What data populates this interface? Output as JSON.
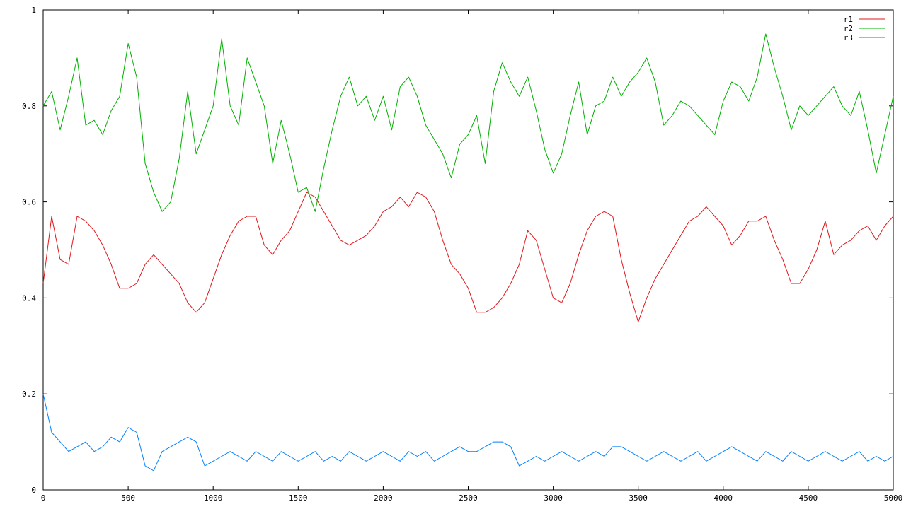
{
  "chart_data": {
    "type": "line",
    "title": "",
    "xlabel": "",
    "ylabel": "",
    "xlim": [
      0,
      5000
    ],
    "ylim": [
      0,
      1
    ],
    "xticks": [
      0,
      500,
      1000,
      1500,
      2000,
      2500,
      3000,
      3500,
      4000,
      4500,
      5000
    ],
    "yticks": [
      0,
      0.2,
      0.4,
      0.6,
      0.8,
      1
    ],
    "ytick_labels": [
      "0",
      "0.2",
      "0.4",
      "0.6",
      "0.8",
      "1"
    ],
    "grid": false,
    "legend_position": "top-right",
    "series": [
      {
        "name": "r1",
        "color": "#e0171b",
        "x": [
          0,
          50,
          100,
          150,
          200,
          250,
          300,
          350,
          400,
          450,
          500,
          550,
          600,
          650,
          700,
          750,
          800,
          850,
          900,
          950,
          1000,
          1050,
          1100,
          1150,
          1200,
          1250,
          1300,
          1350,
          1400,
          1450,
          1500,
          1550,
          1600,
          1650,
          1700,
          1750,
          1800,
          1850,
          1900,
          1950,
          2000,
          2050,
          2100,
          2150,
          2200,
          2250,
          2300,
          2350,
          2400,
          2450,
          2500,
          2550,
          2600,
          2650,
          2700,
          2750,
          2800,
          2850,
          2900,
          2950,
          3000,
          3050,
          3100,
          3150,
          3200,
          3250,
          3300,
          3350,
          3400,
          3450,
          3500,
          3550,
          3600,
          3650,
          3700,
          3750,
          3800,
          3850,
          3900,
          3950,
          4000,
          4050,
          4100,
          4150,
          4200,
          4250,
          4300,
          4350,
          4400,
          4450,
          4500,
          4550,
          4600,
          4650,
          4700,
          4750,
          4800,
          4850,
          4900,
          4950,
          5000
        ],
        "values": [
          0.43,
          0.57,
          0.48,
          0.47,
          0.57,
          0.56,
          0.54,
          0.51,
          0.47,
          0.42,
          0.42,
          0.43,
          0.47,
          0.49,
          0.47,
          0.45,
          0.43,
          0.39,
          0.37,
          0.39,
          0.44,
          0.49,
          0.53,
          0.56,
          0.57,
          0.57,
          0.51,
          0.49,
          0.52,
          0.54,
          0.58,
          0.62,
          0.61,
          0.58,
          0.55,
          0.52,
          0.51,
          0.52,
          0.53,
          0.55,
          0.58,
          0.59,
          0.61,
          0.59,
          0.62,
          0.61,
          0.58,
          0.52,
          0.47,
          0.45,
          0.42,
          0.37,
          0.37,
          0.38,
          0.4,
          0.43,
          0.47,
          0.54,
          0.52,
          0.46,
          0.4,
          0.39,
          0.43,
          0.49,
          0.54,
          0.57,
          0.58,
          0.57,
          0.48,
          0.41,
          0.35,
          0.4,
          0.44,
          0.47,
          0.5,
          0.53,
          0.56,
          0.57,
          0.59,
          0.57,
          0.55,
          0.51,
          0.53,
          0.56,
          0.56,
          0.57,
          0.52,
          0.48,
          0.43,
          0.43,
          0.46,
          0.5,
          0.56,
          0.49,
          0.51,
          0.52,
          0.54,
          0.55,
          0.52,
          0.55,
          0.57
        ]
      },
      {
        "name": "r2",
        "color": "#00b000",
        "x": [
          0,
          50,
          100,
          150,
          200,
          250,
          300,
          350,
          400,
          450,
          500,
          550,
          600,
          650,
          700,
          750,
          800,
          850,
          900,
          950,
          1000,
          1050,
          1100,
          1150,
          1200,
          1250,
          1300,
          1350,
          1400,
          1450,
          1500,
          1550,
          1600,
          1650,
          1700,
          1750,
          1800,
          1850,
          1900,
          1950,
          2000,
          2050,
          2100,
          2150,
          2200,
          2250,
          2300,
          2350,
          2400,
          2450,
          2500,
          2550,
          2600,
          2650,
          2700,
          2750,
          2800,
          2850,
          2900,
          2950,
          3000,
          3050,
          3100,
          3150,
          3200,
          3250,
          3300,
          3350,
          3400,
          3450,
          3500,
          3550,
          3600,
          3650,
          3700,
          3750,
          3800,
          3850,
          3900,
          3950,
          4000,
          4050,
          4100,
          4150,
          4200,
          4250,
          4300,
          4350,
          4400,
          4450,
          4500,
          4550,
          4600,
          4650,
          4700,
          4750,
          4800,
          4850,
          4900,
          4950,
          5000
        ],
        "values": [
          0.8,
          0.83,
          0.75,
          0.82,
          0.9,
          0.76,
          0.77,
          0.74,
          0.79,
          0.82,
          0.93,
          0.86,
          0.68,
          0.62,
          0.58,
          0.6,
          0.69,
          0.83,
          0.7,
          0.75,
          0.8,
          0.94,
          0.8,
          0.76,
          0.9,
          0.85,
          0.8,
          0.68,
          0.77,
          0.7,
          0.62,
          0.63,
          0.58,
          0.67,
          0.75,
          0.82,
          0.86,
          0.8,
          0.82,
          0.77,
          0.82,
          0.75,
          0.84,
          0.86,
          0.82,
          0.76,
          0.73,
          0.7,
          0.65,
          0.72,
          0.74,
          0.78,
          0.68,
          0.83,
          0.89,
          0.85,
          0.82,
          0.86,
          0.79,
          0.71,
          0.66,
          0.7,
          0.78,
          0.85,
          0.74,
          0.8,
          0.81,
          0.86,
          0.82,
          0.85,
          0.87,
          0.9,
          0.85,
          0.76,
          0.78,
          0.81,
          0.8,
          0.78,
          0.76,
          0.74,
          0.81,
          0.85,
          0.84,
          0.81,
          0.86,
          0.95,
          0.88,
          0.82,
          0.75,
          0.8,
          0.78,
          0.8,
          0.82,
          0.84,
          0.8,
          0.78,
          0.83,
          0.75,
          0.66,
          0.74,
          0.82
        ]
      },
      {
        "name": "r3",
        "color": "#0080ff",
        "x": [
          0,
          50,
          100,
          150,
          200,
          250,
          300,
          350,
          400,
          450,
          500,
          550,
          600,
          650,
          700,
          750,
          800,
          850,
          900,
          950,
          1000,
          1050,
          1100,
          1150,
          1200,
          1250,
          1300,
          1350,
          1400,
          1450,
          1500,
          1550,
          1600,
          1650,
          1700,
          1750,
          1800,
          1850,
          1900,
          1950,
          2000,
          2050,
          2100,
          2150,
          2200,
          2250,
          2300,
          2350,
          2400,
          2450,
          2500,
          2550,
          2600,
          2650,
          2700,
          2750,
          2800,
          2850,
          2900,
          2950,
          3000,
          3050,
          3100,
          3150,
          3200,
          3250,
          3300,
          3350,
          3400,
          3450,
          3500,
          3550,
          3600,
          3650,
          3700,
          3750,
          3800,
          3850,
          3900,
          3950,
          4000,
          4050,
          4100,
          4150,
          4200,
          4250,
          4300,
          4350,
          4400,
          4450,
          4500,
          4550,
          4600,
          4650,
          4700,
          4750,
          4800,
          4850,
          4900,
          4950,
          5000
        ],
        "values": [
          0.2,
          0.12,
          0.1,
          0.08,
          0.09,
          0.1,
          0.08,
          0.09,
          0.11,
          0.1,
          0.13,
          0.12,
          0.05,
          0.04,
          0.08,
          0.09,
          0.1,
          0.11,
          0.1,
          0.05,
          0.06,
          0.07,
          0.08,
          0.07,
          0.06,
          0.08,
          0.07,
          0.06,
          0.08,
          0.07,
          0.06,
          0.07,
          0.08,
          0.06,
          0.07,
          0.06,
          0.08,
          0.07,
          0.06,
          0.07,
          0.08,
          0.07,
          0.06,
          0.08,
          0.07,
          0.08,
          0.06,
          0.07,
          0.08,
          0.09,
          0.08,
          0.08,
          0.09,
          0.1,
          0.1,
          0.09,
          0.05,
          0.06,
          0.07,
          0.06,
          0.07,
          0.08,
          0.07,
          0.06,
          0.07,
          0.08,
          0.07,
          0.09,
          0.09,
          0.08,
          0.07,
          0.06,
          0.07,
          0.08,
          0.07,
          0.06,
          0.07,
          0.08,
          0.06,
          0.07,
          0.08,
          0.09,
          0.08,
          0.07,
          0.06,
          0.08,
          0.07,
          0.06,
          0.08,
          0.07,
          0.06,
          0.07,
          0.08,
          0.07,
          0.06,
          0.07,
          0.08,
          0.06,
          0.07,
          0.06,
          0.07
        ]
      }
    ]
  }
}
